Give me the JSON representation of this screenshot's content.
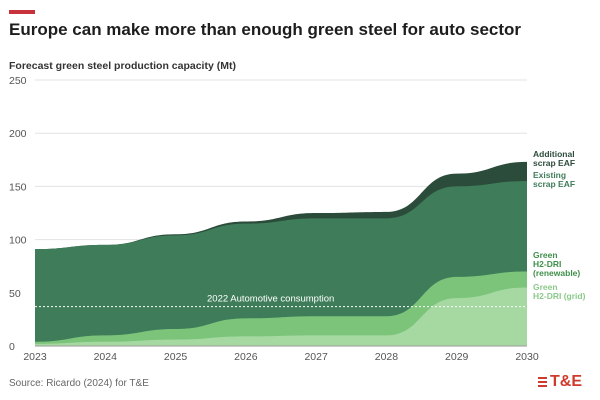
{
  "header": {
    "accent_color": "#c8323c",
    "title": "Europe can make more than enough green steel for auto sector",
    "subtitle": "Forecast green steel production capacity (Mt)"
  },
  "footer": {
    "source": "Source: Ricardo (2024) for T&E",
    "logo_text": "T&E",
    "logo_color": "#d03a2c"
  },
  "chart_data": {
    "type": "area",
    "stacked": true,
    "title": "Europe can make more than enough green steel for auto sector",
    "ylabel": "Forecast green steel production capacity (Mt)",
    "xlabel": "",
    "x": [
      2023,
      2024,
      2025,
      2026,
      2027,
      2028,
      2029,
      2030
    ],
    "ylim": [
      0,
      250
    ],
    "yticks": [
      0,
      50,
      100,
      150,
      200,
      250
    ],
    "grid": true,
    "legend": "right-inline",
    "series": [
      {
        "name": "Green H2-DRI (grid)",
        "color": "#a6d9a2",
        "values": [
          2,
          4,
          6,
          9,
          10,
          10,
          45,
          55
        ]
      },
      {
        "name": "Green H2-DRI (renewable)",
        "color": "#7cc47a",
        "values": [
          2,
          6,
          10,
          17,
          18,
          18,
          20,
          15
        ]
      },
      {
        "name": "Existing scrap EAF",
        "color": "#3f7d5a",
        "values": [
          87,
          85,
          88,
          89,
          92,
          92,
          85,
          85
        ]
      },
      {
        "name": "Additional scrap EAF",
        "color": "#2c4c3b",
        "values": [
          0,
          0,
          1,
          2,
          5,
          6,
          12,
          18
        ]
      }
    ],
    "annotations": [
      {
        "text": "2022 Automotive consumption",
        "y": 37
      }
    ]
  }
}
